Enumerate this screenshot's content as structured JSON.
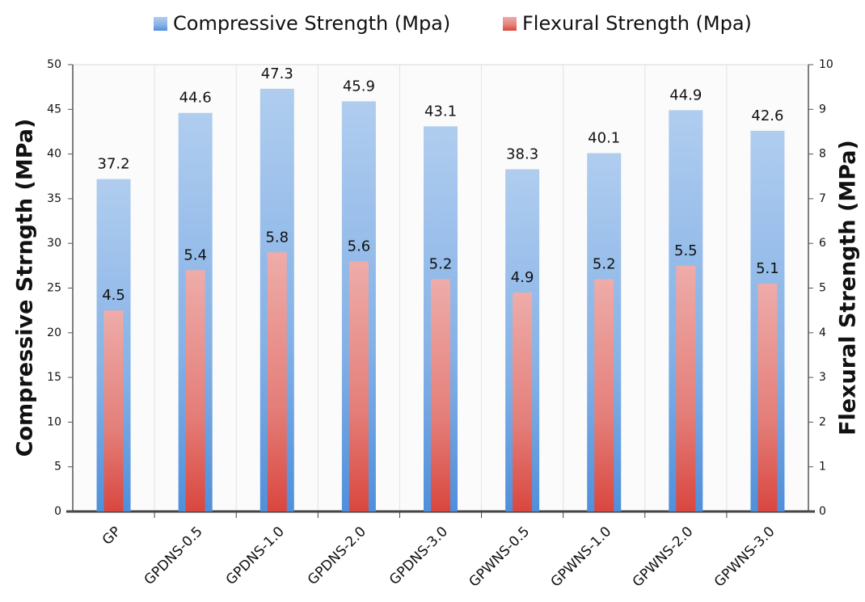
{
  "chart_data": {
    "type": "bar",
    "y_label": "Compressive Strngth (MPa)",
    "y2_label": "Flexural Strength (MPa)",
    "categories": [
      "GP",
      "GPDNS-0.5",
      "GPDNS-1.0",
      "GPDNS-2.0",
      "GPDNS-3.0",
      "GPWNS-0.5",
      "GPWNS-1.0",
      "GPWNS-2.0",
      "GPWNS-3.0"
    ],
    "series": [
      {
        "name": "Compressive Strength (Mpa)",
        "color": "#4f8fdb",
        "values": [
          37.2,
          44.6,
          47.3,
          45.9,
          43.1,
          38.3,
          40.1,
          44.9,
          42.6
        ]
      },
      {
        "name": "Flexural Strength (Mpa)",
        "color": "#d9473f",
        "axis": "y2",
        "values": [
          4.5,
          5.4,
          5.8,
          5.6,
          5.2,
          4.9,
          5.2,
          5.5,
          5.1
        ]
      }
    ],
    "ylim": [
      0,
      50
    ],
    "yticks": [
      0,
      5,
      10,
      15,
      20,
      25,
      30,
      35,
      40,
      45,
      50
    ],
    "y2lim": [
      0,
      10
    ],
    "y2ticks": [
      0,
      1,
      2,
      3,
      4,
      5,
      6,
      7,
      8,
      9,
      10
    ],
    "grid": false,
    "legend": "top"
  }
}
